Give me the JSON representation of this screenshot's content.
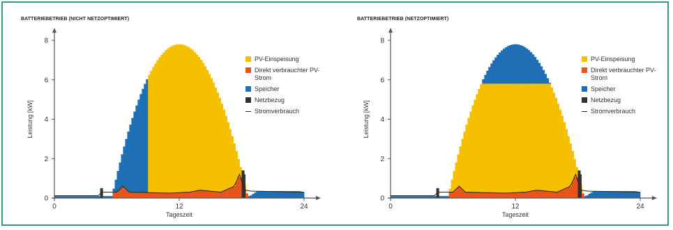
{
  "colors": {
    "pv": "#f5c000",
    "direct": "#e8541e",
    "storage": "#1f6fb5",
    "grid": "#333333",
    "consumption": "#222222",
    "frame": "#3a9a73"
  },
  "chart_data": [
    {
      "type": "area",
      "title": "BATTERIEBETRIEB (NICHT NETZOPTIMIERT)",
      "xlabel": "Tageszeit",
      "ylabel": "Leistung [kW]",
      "xlim": [
        0,
        24
      ],
      "ylim": [
        0,
        8
      ],
      "xticks": [
        "0",
        "12",
        "24"
      ],
      "yticks": [
        "0",
        "2",
        "4",
        "6",
        "8"
      ],
      "legend_position": "right",
      "legend": [
        {
          "label": "PV-Einspeisung",
          "key": "pv"
        },
        {
          "label": "Direkt verbrauchter PV-Strom",
          "key": "direct"
        },
        {
          "label": "Speicher",
          "key": "storage"
        },
        {
          "label": "Netzbezug",
          "key": "grid"
        },
        {
          "label": "Stromverbrauch",
          "key": "consumption"
        }
      ],
      "pv_curve": {
        "sunrise": 5.5,
        "sunset": 18.6,
        "peak": 7.8,
        "peak_time": 12.0
      },
      "battery_charge_until": 9.0,
      "pv_cap": null,
      "storage_discharge": [
        [
          0,
          0.1
        ],
        [
          18.8,
          0.1
        ],
        [
          19.5,
          0.35
        ],
        [
          23.5,
          0.35
        ],
        [
          24,
          0.3
        ]
      ],
      "grid_spikes": [
        [
          4.4,
          0.5
        ],
        [
          18.0,
          1.4
        ],
        [
          18.1,
          1.2
        ]
      ],
      "consumption": [
        [
          0,
          0.12
        ],
        [
          4.3,
          0.12
        ],
        [
          4.5,
          0.3
        ],
        [
          6,
          0.3
        ],
        [
          6.6,
          0.6
        ],
        [
          7.2,
          0.3
        ],
        [
          11,
          0.25
        ],
        [
          13,
          0.3
        ],
        [
          14,
          0.4
        ],
        [
          16,
          0.3
        ],
        [
          17.3,
          0.6
        ],
        [
          17.8,
          1.2
        ],
        [
          18.3,
          0.4
        ],
        [
          19,
          0.35
        ],
        [
          24,
          0.3
        ]
      ]
    },
    {
      "type": "area",
      "title": "BATTERIEBETRIEB (NETZOPTIMIERT)",
      "xlabel": "Tageszeit",
      "ylabel": "Leistung [kW]",
      "xlim": [
        0,
        24
      ],
      "ylim": [
        0,
        8
      ],
      "xticks": [
        "0",
        "12",
        "24"
      ],
      "yticks": [
        "0",
        "2",
        "4",
        "6",
        "8"
      ],
      "legend_position": "right",
      "legend": [
        {
          "label": "PV-Einspeisung",
          "key": "pv"
        },
        {
          "label": "Direkt verbrauchter PV-Strom",
          "key": "direct"
        },
        {
          "label": "Speicher",
          "key": "storage"
        },
        {
          "label": "Netzbezug",
          "key": "grid"
        },
        {
          "label": "Stromverbrauch",
          "key": "consumption"
        }
      ],
      "pv_curve": {
        "sunrise": 5.5,
        "sunset": 18.6,
        "peak": 7.8,
        "peak_time": 12.0
      },
      "battery_charge_until": null,
      "pv_cap": 5.8,
      "storage_discharge": [
        [
          0,
          0.1
        ],
        [
          18.8,
          0.1
        ],
        [
          19.5,
          0.35
        ],
        [
          23.5,
          0.35
        ],
        [
          24,
          0.3
        ]
      ],
      "grid_spikes": [
        [
          4.4,
          0.5
        ],
        [
          18.0,
          1.4
        ],
        [
          18.1,
          1.2
        ]
      ],
      "consumption": [
        [
          0,
          0.12
        ],
        [
          4.3,
          0.12
        ],
        [
          4.5,
          0.3
        ],
        [
          6,
          0.3
        ],
        [
          6.6,
          0.6
        ],
        [
          7.2,
          0.3
        ],
        [
          11,
          0.25
        ],
        [
          13,
          0.3
        ],
        [
          14,
          0.4
        ],
        [
          16,
          0.3
        ],
        [
          17.3,
          0.6
        ],
        [
          17.8,
          1.2
        ],
        [
          18.3,
          0.4
        ],
        [
          19,
          0.35
        ],
        [
          24,
          0.3
        ]
      ]
    }
  ]
}
